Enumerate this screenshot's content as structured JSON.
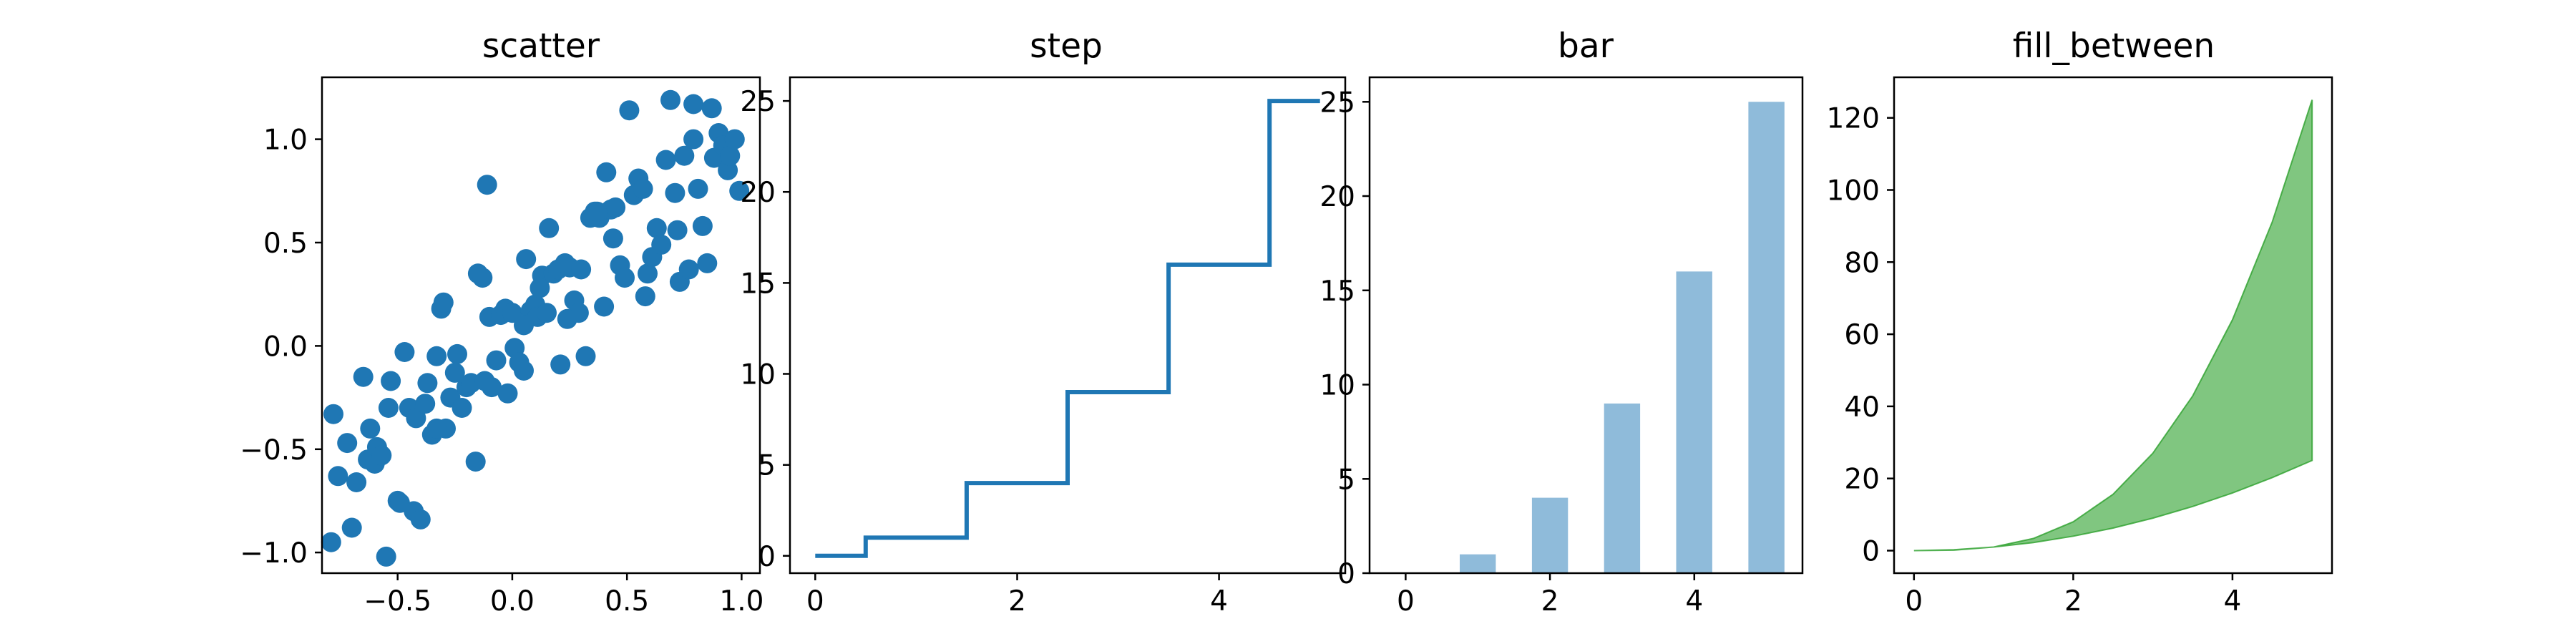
{
  "figure": {
    "background": "#ffffff"
  },
  "chart_data": [
    {
      "type": "scatter",
      "title": "scatter",
      "xlabel": "",
      "ylabel": "",
      "xlim": [
        -0.83,
        1.08
      ],
      "ylim": [
        -1.1,
        1.3
      ],
      "xticks": [
        -0.5,
        0.0,
        0.5,
        1.0
      ],
      "xtick_labels": [
        "−0.5",
        "0.0",
        "0.5",
        "1.0"
      ],
      "yticks": [
        -1.0,
        -0.5,
        0.0,
        0.5,
        1.0
      ],
      "ytick_labels": [
        "−1.0",
        "−0.5",
        "0.0",
        "0.5",
        "1.0"
      ],
      "color": "#1f77b4",
      "series": [
        {
          "x": [
            -0.79,
            -0.78,
            -0.76,
            -0.72,
            -0.7,
            -0.68,
            -0.65,
            -0.63,
            -0.62,
            -0.6,
            -0.59,
            -0.57,
            -0.55,
            -0.53,
            -0.5,
            -0.49,
            -0.47,
            -0.45,
            -0.43,
            -0.42,
            -0.4,
            -0.38,
            -0.37,
            -0.35,
            -0.33,
            -0.31,
            -0.3,
            -0.29,
            -0.27,
            -0.25,
            -0.24,
            -0.22,
            -0.2,
            -0.18,
            -0.16,
            -0.15,
            -0.13,
            -0.12,
            -0.1,
            -0.09,
            -0.07,
            -0.05,
            -0.03,
            -0.02,
            0.0,
            0.01,
            0.03,
            0.05,
            0.06,
            0.08,
            0.1,
            0.11,
            0.13,
            0.15,
            0.16,
            0.18,
            0.2,
            0.21,
            0.23,
            0.25,
            0.27,
            0.29,
            0.3,
            0.32,
            0.34,
            0.36,
            0.38,
            0.4,
            0.41,
            0.43,
            0.45,
            0.47,
            0.49,
            0.51,
            0.53,
            0.55,
            0.57,
            0.59,
            0.61,
            0.63,
            0.65,
            0.67,
            0.69,
            0.71,
            0.73,
            0.75,
            0.77,
            0.79,
            0.81,
            0.83,
            0.85,
            0.87,
            0.88,
            0.9,
            0.92,
            0.94,
            0.95,
            0.97,
            0.99,
            0.72,
            -0.11,
            0.05,
            0.37,
            0.58,
            -0.33,
            0.24,
            0.79,
            -0.54,
            0.12,
            0.44
          ],
          "y": [
            -0.95,
            -0.33,
            -0.63,
            -0.47,
            -0.88,
            -0.66,
            -0.15,
            -0.55,
            -0.4,
            -0.57,
            -0.49,
            -0.53,
            -1.02,
            -0.17,
            -0.75,
            -0.76,
            -0.03,
            -0.3,
            -0.8,
            -0.35,
            -0.84,
            -0.28,
            -0.18,
            -0.43,
            -0.05,
            0.18,
            0.21,
            -0.4,
            -0.25,
            -0.13,
            -0.04,
            -0.3,
            -0.2,
            -0.18,
            -0.56,
            0.35,
            0.33,
            -0.17,
            0.14,
            -0.2,
            -0.07,
            0.15,
            0.18,
            -0.23,
            0.16,
            -0.01,
            -0.08,
            -0.12,
            0.42,
            0.17,
            0.2,
            0.14,
            0.34,
            0.16,
            0.57,
            0.35,
            0.37,
            -0.09,
            0.4,
            0.38,
            0.22,
            0.16,
            0.37,
            -0.05,
            0.62,
            0.65,
            0.62,
            0.19,
            0.84,
            0.66,
            0.67,
            0.39,
            0.33,
            1.14,
            0.73,
            0.81,
            0.76,
            0.35,
            0.43,
            0.57,
            0.49,
            0.9,
            1.19,
            0.74,
            0.31,
            0.92,
            0.37,
            1.17,
            0.76,
            0.58,
            0.4,
            1.15,
            0.91,
            1.03,
            0.97,
            0.85,
            0.92,
            1.0,
            0.75,
            0.56,
            0.78,
            0.1,
            0.65,
            0.24,
            -0.4,
            0.13,
            1.0,
            -0.3,
            0.28,
            0.52
          ]
        }
      ]
    },
    {
      "type": "line",
      "title": "step",
      "xlabel": "",
      "ylabel": "",
      "xlim": [
        -0.25,
        5.25
      ],
      "ylim": [
        -0.95,
        26.3
      ],
      "xticks": [
        0,
        2,
        4
      ],
      "xtick_labels": [
        "0",
        "2",
        "4"
      ],
      "yticks": [
        0,
        5,
        10,
        15,
        20,
        25
      ],
      "ytick_labels": [
        "0",
        "5",
        "10",
        "15",
        "20",
        "25"
      ],
      "color": "#1f77b4",
      "step": "mid",
      "series": [
        {
          "x": [
            0,
            1,
            2,
            3,
            4,
            5
          ],
          "y": [
            0,
            1,
            4,
            9,
            16,
            25
          ]
        }
      ]
    },
    {
      "type": "bar",
      "title": "bar",
      "xlabel": "",
      "ylabel": "",
      "xlim": [
        -0.5,
        5.5
      ],
      "ylim": [
        0,
        26.3
      ],
      "xticks": [
        0,
        2,
        4
      ],
      "xtick_labels": [
        "0",
        "2",
        "4"
      ],
      "yticks": [
        0,
        5,
        10,
        15,
        20,
        25
      ],
      "ytick_labels": [
        "0",
        "5",
        "10",
        "15",
        "20",
        "25"
      ],
      "color": "#8fbbda",
      "bar_width": 0.5,
      "series": [
        {
          "x": [
            0,
            1,
            2,
            3,
            4,
            5
          ],
          "values": [
            0,
            1,
            4,
            9,
            16,
            25
          ]
        }
      ]
    },
    {
      "type": "area",
      "title": "fill_between",
      "xlabel": "",
      "ylabel": "",
      "xlim": [
        -0.25,
        5.25
      ],
      "ylim": [
        -6.25,
        131.25
      ],
      "xticks": [
        0,
        2,
        4
      ],
      "xtick_labels": [
        "0",
        "2",
        "4"
      ],
      "yticks": [
        0,
        20,
        40,
        60,
        80,
        100,
        120
      ],
      "ytick_labels": [
        "0",
        "20",
        "40",
        "60",
        "80",
        "100",
        "120"
      ],
      "color": "#2ca02c",
      "series": [
        {
          "x": [
            0,
            0.5,
            1,
            1.5,
            2,
            2.5,
            3,
            3.5,
            4,
            4.5,
            5
          ],
          "y1": [
            0,
            0.125,
            1,
            3.375,
            8,
            15.625,
            27,
            42.875,
            64,
            91.125,
            125
          ],
          "y2": [
            0,
            0.25,
            1,
            2.25,
            4,
            6.25,
            9,
            12.25,
            16,
            20.25,
            25
          ]
        }
      ]
    }
  ]
}
